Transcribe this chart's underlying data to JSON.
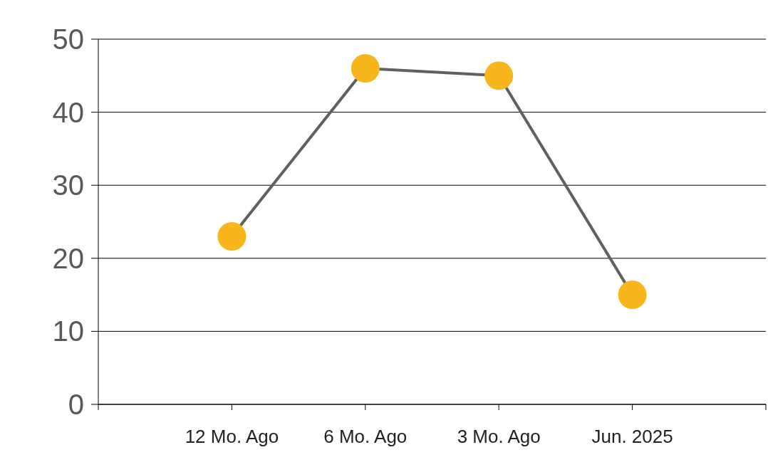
{
  "chart_data": {
    "type": "line",
    "categories": [
      "12 Mo. Ago",
      "6 Mo. Ago",
      "3 Mo. Ago",
      "Jun. 2025"
    ],
    "series": [
      {
        "color": "#606060",
        "colors": [
          "#f9b51c",
          "#f9b51c",
          "#f9b51c",
          "#f9b51c"
        ],
        "values": [
          23,
          46,
          45,
          15
        ]
      }
    ],
    "ylim": [
      0,
      50
    ],
    "yticks": [
      0,
      10,
      20,
      30,
      40,
      50
    ],
    "grid": "y",
    "marker": "circle",
    "line_style": "solid"
  }
}
